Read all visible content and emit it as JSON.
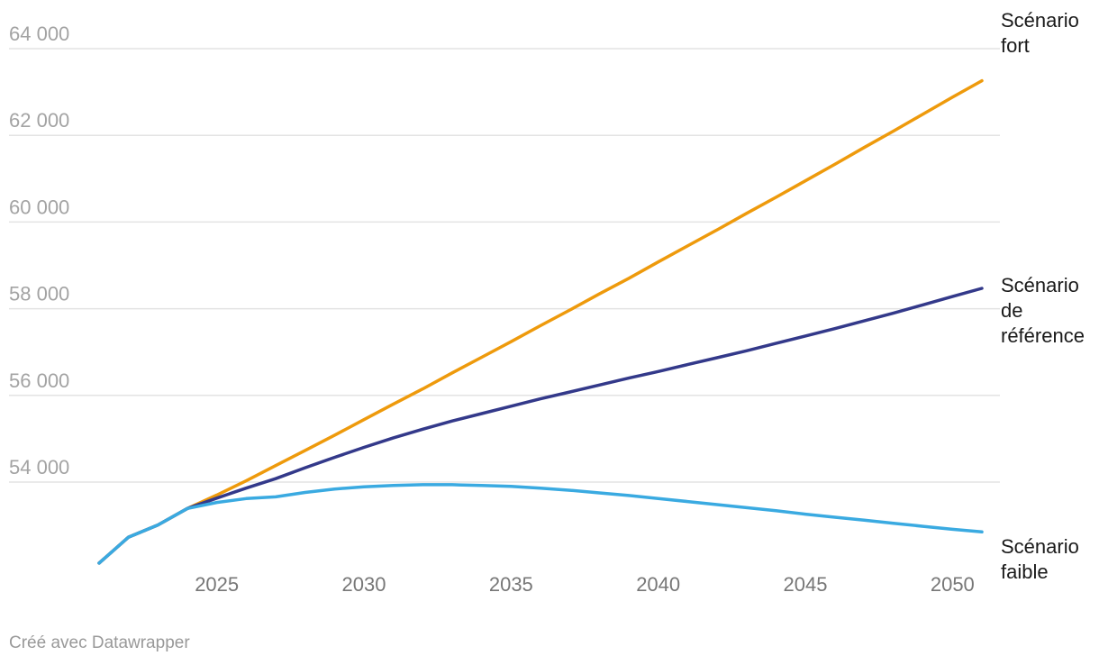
{
  "chart_data": {
    "type": "line",
    "x": [
      2021,
      2022,
      2023,
      2024,
      2025,
      2026,
      2027,
      2028,
      2029,
      2030,
      2031,
      2032,
      2033,
      2034,
      2035,
      2036,
      2037,
      2038,
      2039,
      2040,
      2041,
      2042,
      2043,
      2044,
      2045,
      2046,
      2047,
      2048,
      2049,
      2050,
      2051
    ],
    "x_ticks": [
      "2025",
      "2030",
      "2035",
      "2040",
      "2045",
      "2050"
    ],
    "y_ticks": [
      "54 000",
      "56 000",
      "58 000",
      "60 000",
      "62 000",
      "64 000"
    ],
    "ylim": [
      51700,
      64700
    ],
    "xlim": [
      2020.5,
      2051.5
    ],
    "grid": true,
    "series": [
      {
        "name": "Scénario fort",
        "label_lines": [
          "Scénario",
          "fort"
        ],
        "color": "#ee9a0c",
        "values": [
          52130,
          52730,
          53010,
          53390,
          53700,
          54030,
          54380,
          54730,
          55080,
          55440,
          55800,
          56150,
          56520,
          56880,
          57240,
          57610,
          57970,
          58340,
          58700,
          59080,
          59450,
          59820,
          60200,
          60570,
          60950,
          61330,
          61720,
          62100,
          62490,
          62880,
          63260
        ]
      },
      {
        "name": "Scénario de référence",
        "label_lines": [
          "Scénario",
          "de",
          "référence"
        ],
        "color": "#33398a",
        "values": [
          52130,
          52730,
          53010,
          53390,
          53630,
          53860,
          54080,
          54330,
          54570,
          54800,
          55020,
          55220,
          55410,
          55580,
          55750,
          55920,
          56080,
          56240,
          56400,
          56550,
          56710,
          56870,
          57030,
          57200,
          57370,
          57540,
          57720,
          57900,
          58090,
          58280,
          58470
        ]
      },
      {
        "name": "Scénario faible",
        "label_lines": [
          "Scénario",
          "faible"
        ],
        "color": "#3aaae1",
        "values": [
          52130,
          52730,
          53010,
          53390,
          53530,
          53620,
          53660,
          53760,
          53840,
          53890,
          53920,
          53940,
          53940,
          53920,
          53900,
          53860,
          53810,
          53750,
          53690,
          53620,
          53550,
          53480,
          53410,
          53340,
          53260,
          53190,
          53120,
          53050,
          52980,
          52910,
          52850
        ]
      }
    ]
  },
  "credit": "Créé avec Datawrapper"
}
